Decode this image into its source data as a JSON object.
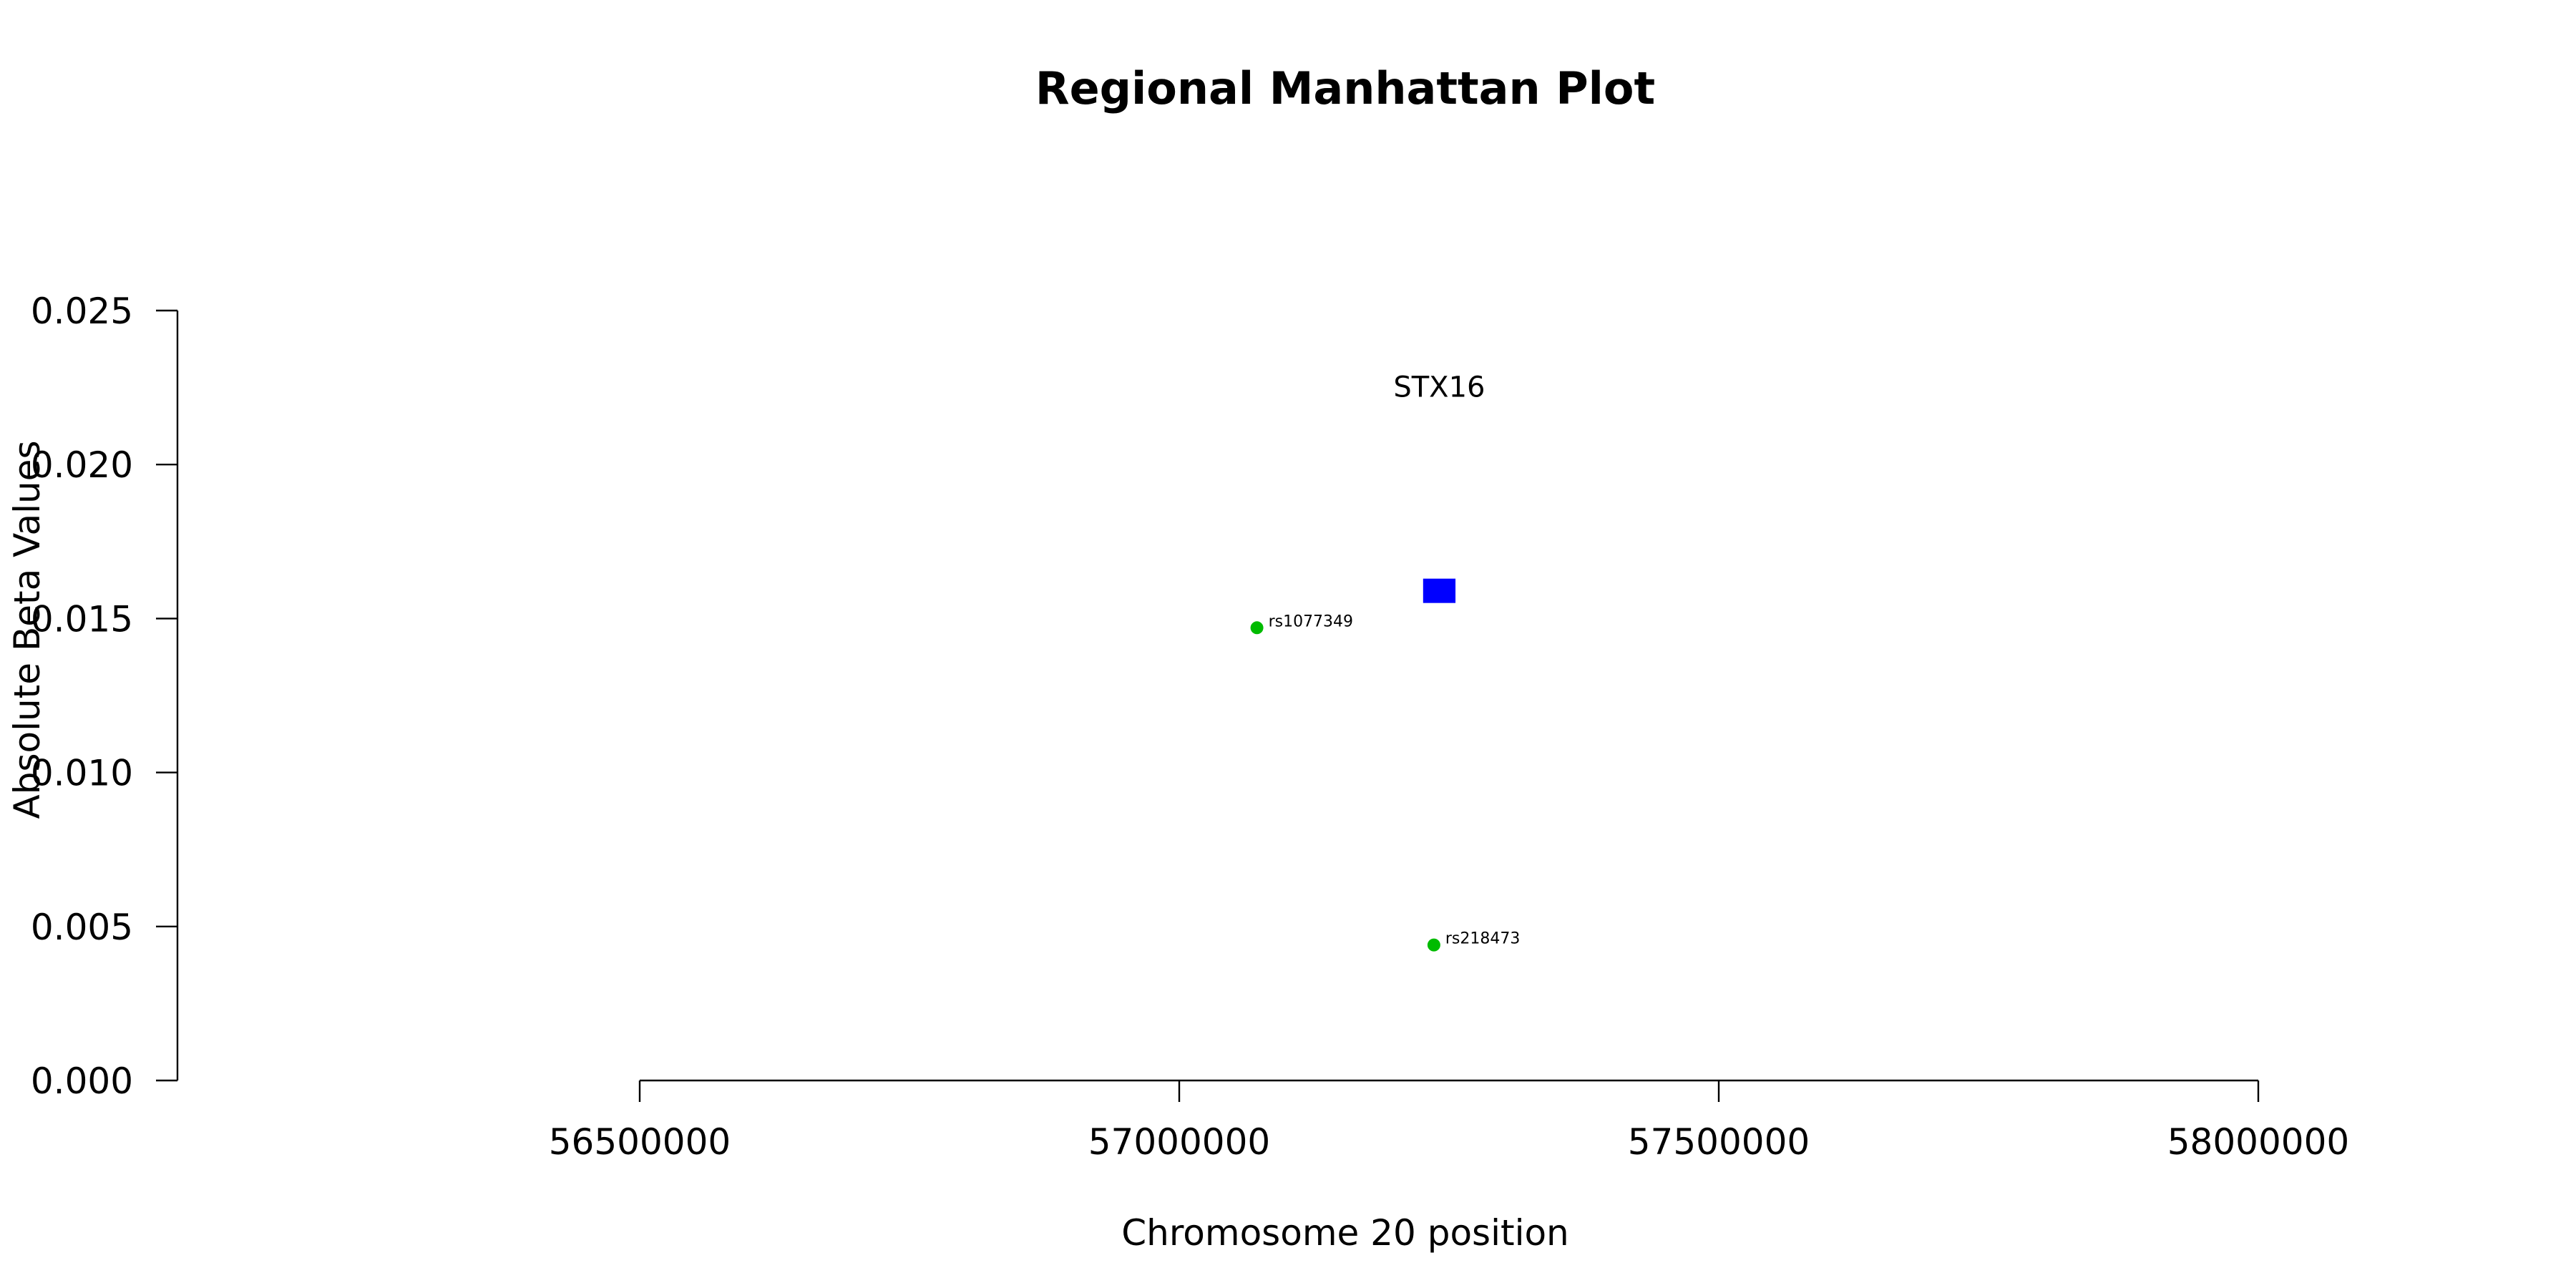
{
  "chart_data": {
    "type": "scatter",
    "title": "Regional Manhattan Plot",
    "xlabel": "Chromosome 20 position",
    "ylabel": "Absolute Beta Values",
    "xlim": [
      56500000,
      58000000
    ],
    "ylim": [
      0,
      0.025
    ],
    "x_ticks": [
      56500000,
      57000000,
      57500000,
      58000000
    ],
    "x_tick_labels": [
      "56500000",
      "57000000",
      "57500000",
      "58000000"
    ],
    "y_ticks": [
      0,
      0.005,
      0.01,
      0.015,
      0.02,
      0.025
    ],
    "y_tick_labels": [
      "0.000",
      "0.005",
      "0.010",
      "0.015",
      "0.020",
      "0.025"
    ],
    "grid": false,
    "points": [
      {
        "label": "rs1077349",
        "x": 57072000,
        "y": 0.0147,
        "color": "#00bb00"
      },
      {
        "label": "rs218473",
        "x": 57236000,
        "y": 0.0044,
        "color": "#00bb00"
      }
    ],
    "genes": [
      {
        "name": "STX16",
        "x_start": 57226000,
        "x_end": 57256000,
        "y": 0.0159,
        "color": "#0000ff"
      }
    ]
  }
}
